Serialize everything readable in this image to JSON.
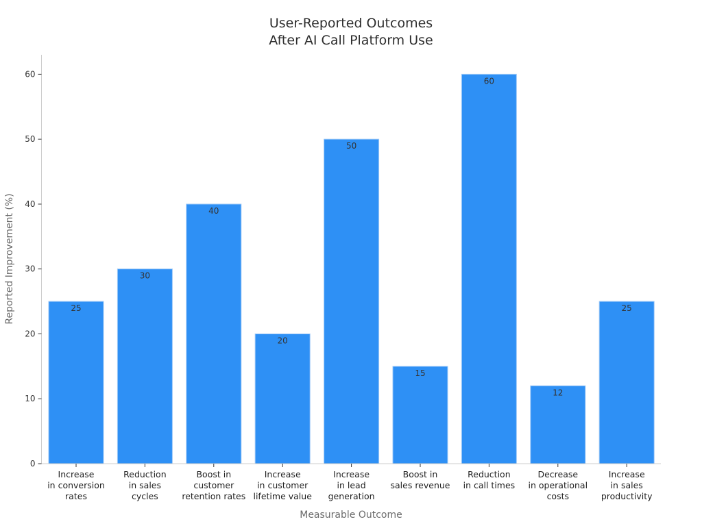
{
  "chart_data": {
    "type": "bar",
    "title_lines": [
      "User-Reported Outcomes",
      "After AI Call Platform Use"
    ],
    "xlabel": "Measurable Outcome",
    "ylabel": "Reported Improvement (%)",
    "ylim": [
      0,
      63
    ],
    "yticks": [
      0,
      10,
      20,
      30,
      40,
      50,
      60
    ],
    "grid": false,
    "categories": [
      [
        "Increase",
        "in conversion",
        "rates"
      ],
      [
        "Reduction",
        "in sales",
        "cycles"
      ],
      [
        "Boost in",
        "customer",
        "retention rates"
      ],
      [
        "Increase",
        "in customer",
        "lifetime value"
      ],
      [
        "Increase",
        "in lead",
        "generation"
      ],
      [
        "Boost in",
        "sales revenue"
      ],
      [
        "Reduction",
        "in call times"
      ],
      [
        "Decrease",
        "in operational",
        "costs"
      ],
      [
        "Increase",
        "in sales",
        "productivity"
      ]
    ],
    "values": [
      25,
      30,
      40,
      20,
      50,
      15,
      60,
      12,
      25
    ],
    "bar_color": "#2e90f5",
    "bar_edge_color": "#9ec9f7"
  }
}
